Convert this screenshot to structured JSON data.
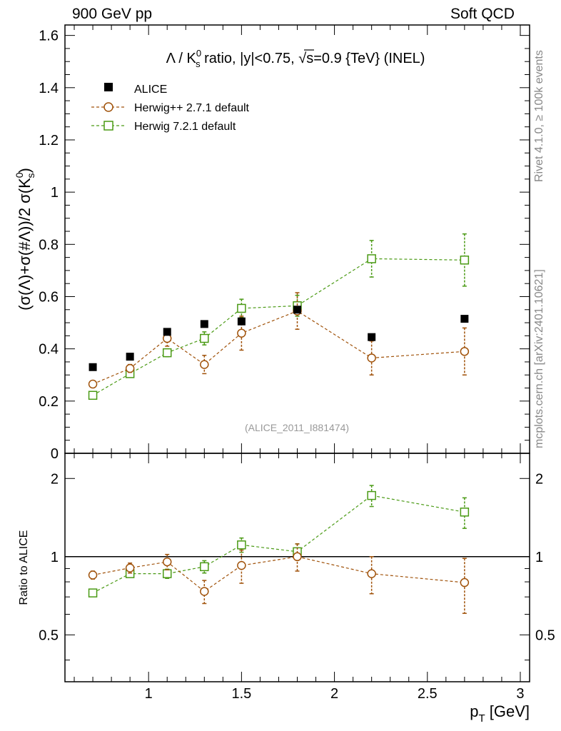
{
  "header": {
    "left": "900 GeV pp",
    "right": "Soft QCD"
  },
  "side_labels": {
    "rivet": "Rivet 4.1.0, ≥ 100k events",
    "mcplots": "mcplots.cern.ch [arXiv:2401.10621]"
  },
  "chart_data": [
    {
      "type": "scatter",
      "panel": "main",
      "title": "Λ / K⁰s ratio, |y|<0.75, √s=0.9 {TeV} (INEL)",
      "title_parts": {
        "pre": "Λ / K",
        "sup": "0",
        "sub": "s",
        "mid": " ratio, |y|<0.75, ",
        "sqrt": "√",
        "post": "s=0.9 {TeV} (INEL)"
      },
      "ylabel": "(σ(Λ)+σ(#Λ))/2 σ(K⁰s)",
      "ylabel_parts": {
        "a": "(σ(Λ)+σ(",
        "b": "#Λ",
        "c": "))/2 σ(K",
        "sup": "0",
        "sub": "s",
        "d": ")"
      },
      "xlim": [
        0.55,
        3.05
      ],
      "ylim": [
        0,
        1.64
      ],
      "yticks": [
        0,
        0.2,
        0.4,
        0.6,
        0.8,
        1,
        1.2,
        1.4,
        1.6
      ],
      "ytick_labels": [
        "0",
        "0.2",
        "0.4",
        "0.6",
        "0.8",
        "1",
        "1.2",
        "1.4",
        "1.6"
      ],
      "watermark": "(ALICE_2011_I881474)",
      "legend_position": "top-left",
      "series": [
        {
          "name": "ALICE",
          "color": "#000000",
          "marker": "filled-square",
          "x": [
            0.7,
            0.9,
            1.1,
            1.3,
            1.5,
            1.8,
            2.2,
            2.7
          ],
          "y": [
            0.33,
            0.37,
            0.465,
            0.495,
            0.505,
            0.55,
            0.445,
            0.515
          ],
          "yerr": [
            0.0,
            0.0,
            0.0,
            0.0,
            0.0,
            0.0,
            0.0,
            0.0
          ]
        },
        {
          "name": "Herwig++ 2.7.1 default",
          "color": "#a0520a",
          "marker": "open-circle",
          "x": [
            0.7,
            0.9,
            1.1,
            1.3,
            1.5,
            1.8,
            2.2,
            2.7
          ],
          "y": [
            0.265,
            0.325,
            0.44,
            0.34,
            0.46,
            0.545,
            0.365,
            0.39
          ],
          "yerr": [
            0.01,
            0.015,
            0.03,
            0.035,
            0.065,
            0.07,
            0.065,
            0.09
          ]
        },
        {
          "name": "Herwig 7.2.1 default",
          "color": "#4a9a14",
          "marker": "open-square",
          "x": [
            0.7,
            0.9,
            1.1,
            1.3,
            1.5,
            1.8,
            2.2,
            2.7
          ],
          "y": [
            0.222,
            0.305,
            0.385,
            0.44,
            0.555,
            0.565,
            0.745,
            0.74
          ],
          "yerr": [
            0.006,
            0.01,
            0.015,
            0.025,
            0.035,
            0.04,
            0.07,
            0.1
          ]
        }
      ]
    },
    {
      "type": "scatter",
      "panel": "ratio",
      "ylabel": "Ratio to ALICE",
      "xlabel": "p",
      "xlabel_sub": "T",
      "xlabel_unit": " [GeV]",
      "xlim": [
        0.55,
        3.05
      ],
      "ylim": [
        0.33,
        2.5
      ],
      "yscale": "log",
      "xticks": [
        1,
        1.5,
        2,
        2.5,
        3
      ],
      "xtick_labels": [
        "1",
        "1.5",
        "2",
        "2.5",
        "3"
      ],
      "yticks": [
        0.5,
        1,
        2
      ],
      "ytick_labels": [
        "0.5",
        "1",
        "2"
      ],
      "reference_line": 1,
      "series": [
        {
          "name": "Herwig++ 2.7.1 default",
          "color": "#a0520a",
          "marker": "open-circle",
          "x": [
            0.7,
            0.9,
            1.1,
            1.3,
            1.5,
            1.8,
            2.2,
            2.7
          ],
          "y": [
            0.85,
            0.905,
            0.955,
            0.735,
            0.925,
            1.0,
            0.86,
            0.795
          ],
          "yerr": [
            0.03,
            0.04,
            0.065,
            0.075,
            0.135,
            0.12,
            0.14,
            0.19
          ]
        },
        {
          "name": "Herwig 7.2.1 default",
          "color": "#4a9a14",
          "marker": "open-square",
          "x": [
            0.7,
            0.9,
            1.1,
            1.3,
            1.5,
            1.8,
            2.2,
            2.7
          ],
          "y": [
            0.725,
            0.86,
            0.86,
            0.915,
            1.11,
            1.045,
            1.72,
            1.485
          ],
          "yerr": [
            0.018,
            0.025,
            0.035,
            0.05,
            0.07,
            0.075,
            0.16,
            0.2
          ]
        }
      ]
    }
  ]
}
